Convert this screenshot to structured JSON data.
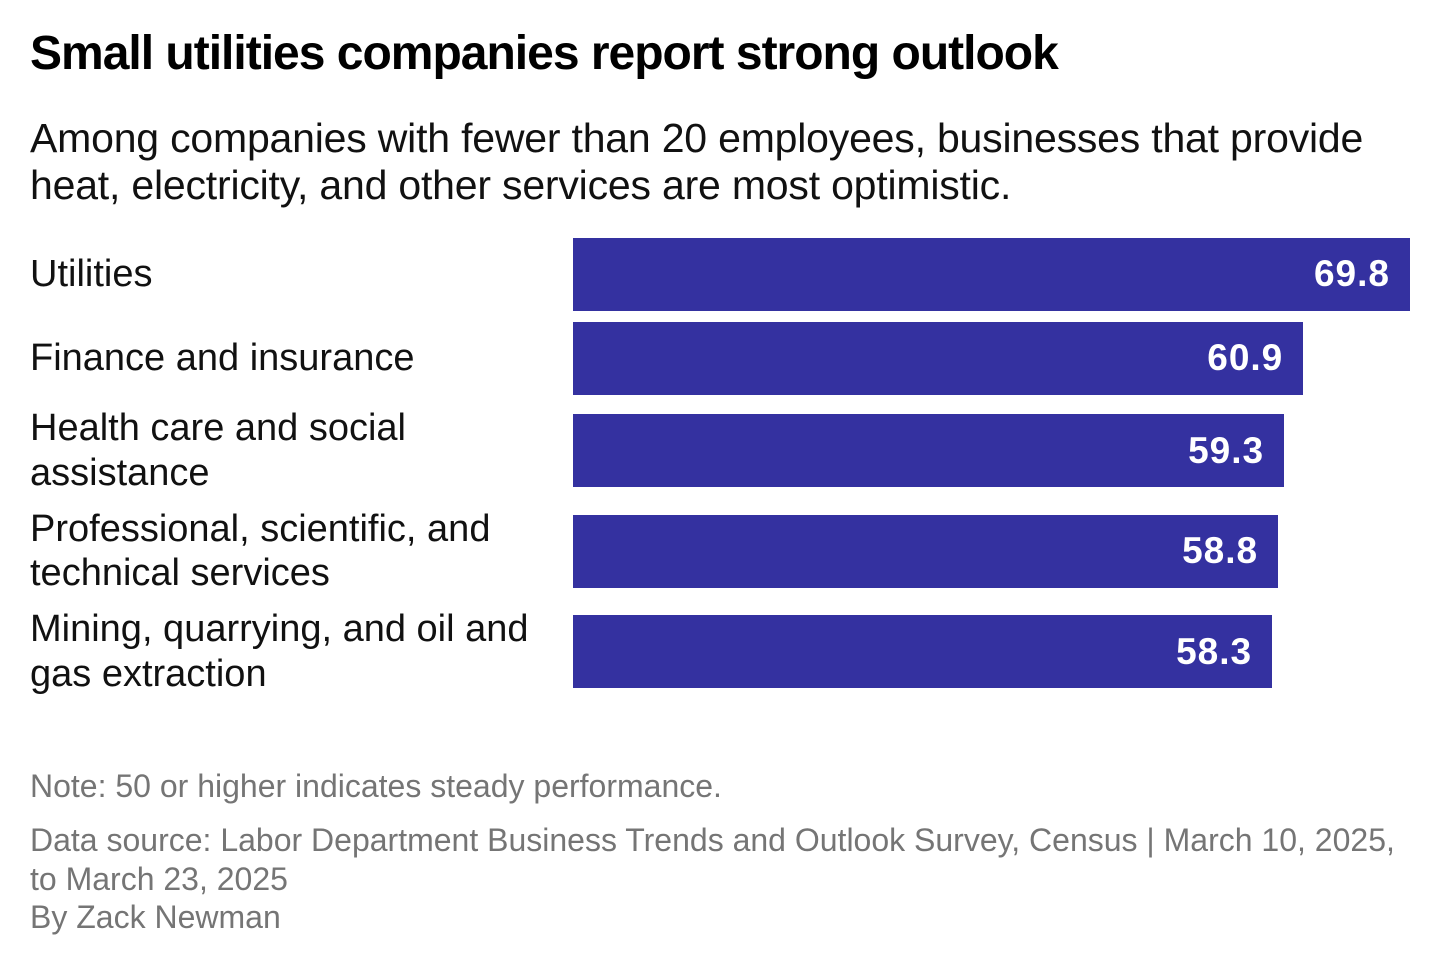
{
  "header": {
    "title": "Small utilities companies report strong outlook",
    "subtitle": "Among companies with fewer than 20 employees, businesses that provide heat, electricity, and other services are most optimistic."
  },
  "chart_data": {
    "type": "bar",
    "orientation": "horizontal",
    "title": "Small utilities companies report strong outlook",
    "subtitle": "Among companies with fewer than 20 employees, businesses that provide heat, electricity, and other services are most optimistic.",
    "categories": [
      "Utilities",
      "Finance and insurance",
      "Health care and social assistance",
      "Professional, scientific, and technical services",
      "Mining, quarrying, and oil and gas extraction"
    ],
    "label_lines": [
      [
        "Utilities"
      ],
      [
        "Finance and insurance"
      ],
      [
        "Health care and social",
        "assistance"
      ],
      [
        "Professional, scientific, and",
        "technical services"
      ],
      [
        "Mining, quarrying, and oil and",
        "gas extraction"
      ]
    ],
    "values": [
      69.8,
      60.9,
      59.3,
      58.8,
      58.3
    ],
    "value_labels": [
      "69.8",
      "60.9",
      "59.3",
      "58.8",
      "58.3"
    ],
    "xlim": [
      0,
      69.8
    ],
    "grid": false,
    "legend": "none",
    "bar_color": "#3431a0",
    "value_label_color": "#ffffff"
  },
  "footer": {
    "note": "Note: 50 or higher indicates steady performance.",
    "source": "Data source: Labor Department Business Trends and Outlook Survey, Census | March 10, 2025, to March 23, 2025",
    "byline": "By Zack Newman"
  }
}
